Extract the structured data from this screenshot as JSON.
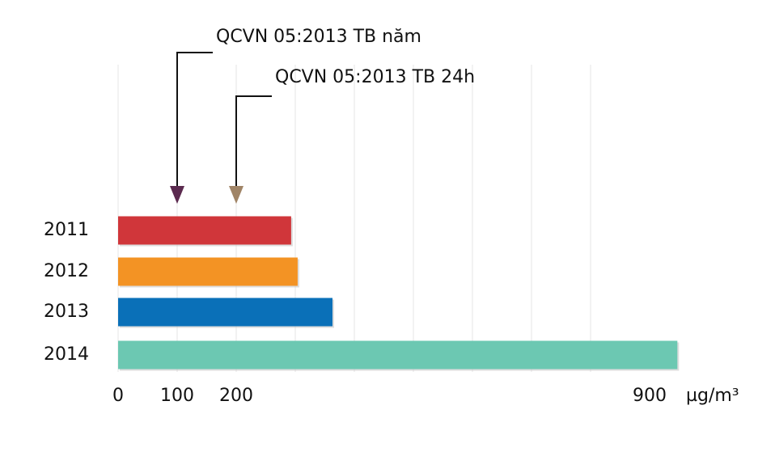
{
  "chart_data": {
    "type": "hbar",
    "categories": [
      "2011",
      "2012",
      "2013",
      "2014"
    ],
    "values": [
      293,
      304,
      363,
      947
    ],
    "colors": [
      "#d0363a",
      "#f39324",
      "#0a70b8",
      "#6cc8b2"
    ],
    "xlim": [
      0,
      1000
    ],
    "xticks": [
      0,
      100,
      200,
      900
    ],
    "x_gridlines": [
      0,
      100,
      200,
      300,
      400,
      500,
      600,
      700,
      800
    ],
    "x_label": "µg/m³",
    "annotations": [
      {
        "text": "QCVN 05:2013 TB năm",
        "x": 100,
        "color": "#5b2a4f"
      },
      {
        "text": "QCVN 05:2013 TB 24h",
        "x": 200,
        "color": "#a08466"
      }
    ]
  }
}
